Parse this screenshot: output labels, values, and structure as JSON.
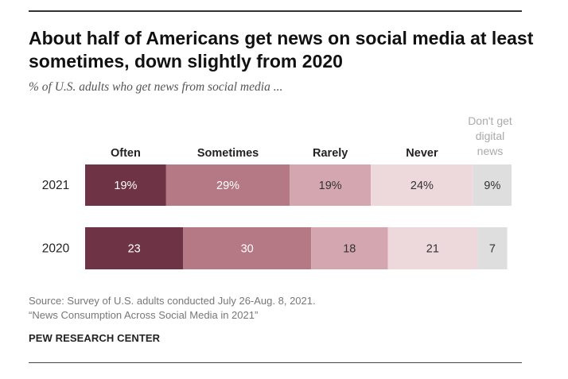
{
  "title": "About half of Americans get news on social media at least sometimes, down slightly from 2020",
  "subtitle": "% of U.S. adults who get news from social media ...",
  "source": "Source: Survey of U.S. adults conducted July 26-Aug. 8, 2021.",
  "report": "“News Consumption Across Social Media in 2021”",
  "org": "PEW RESEARCH CENTER",
  "colors": {
    "often": "#6e3344",
    "sometimes": "#b57885",
    "rarely": "#d4a7b0",
    "never": "#edd8dc",
    "dont_get": "#dedede",
    "dark_text": "#ffffff",
    "light_text": "#333333",
    "dont_get_header": "#aaaaaa"
  },
  "chart_data": {
    "type": "bar",
    "stacked": true,
    "orientation": "horizontal",
    "categories": [
      "2021",
      "2020"
    ],
    "series": [
      {
        "name": "Often",
        "values": [
          19,
          23
        ],
        "labels": [
          "19%",
          "23"
        ]
      },
      {
        "name": "Sometimes",
        "values": [
          29,
          30
        ],
        "labels": [
          "29%",
          "30"
        ]
      },
      {
        "name": "Rarely",
        "values": [
          19,
          18
        ],
        "labels": [
          "19%",
          "18"
        ]
      },
      {
        "name": "Never",
        "values": [
          24,
          21
        ],
        "labels": [
          "24%",
          "21"
        ]
      },
      {
        "name": "Don't get digital news",
        "values": [
          9,
          7
        ],
        "labels": [
          "9%",
          "7"
        ]
      }
    ],
    "xlim": [
      0,
      100
    ]
  }
}
